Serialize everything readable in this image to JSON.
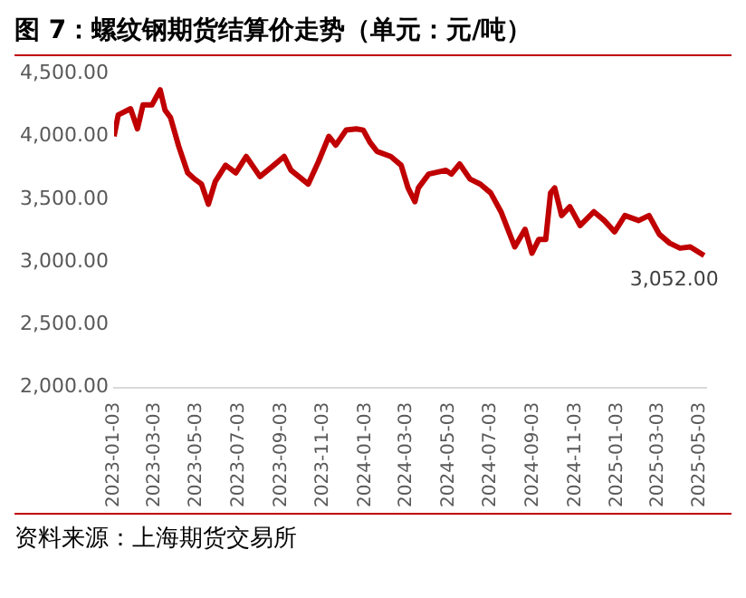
{
  "chart_data": {
    "type": "line",
    "title": "图 7：螺纹钢期货结算价走势（单元：元/吨）",
    "x": [
      "2023-01-03",
      "2023-01-09",
      "2023-01-27",
      "2023-02-06",
      "2023-02-14",
      "2023-02-27",
      "2023-03-11",
      "2023-03-18",
      "2023-03-26",
      "2023-04-07",
      "2023-04-20",
      "2023-04-30",
      "2023-05-10",
      "2023-05-20",
      "2023-05-30",
      "2023-06-14",
      "2023-06-29",
      "2023-07-14",
      "2023-08-03",
      "2023-08-23",
      "2023-09-07",
      "2023-09-17",
      "2023-10-12",
      "2023-10-27",
      "2023-11-11",
      "2023-11-21",
      "2023-12-06",
      "2023-12-21",
      "2023-12-31",
      "2024-01-10",
      "2024-01-20",
      "2024-02-09",
      "2024-02-24",
      "2024-03-05",
      "2024-03-15",
      "2024-03-20",
      "2024-04-04",
      "2024-04-29",
      "2024-05-07",
      "2024-05-19",
      "2024-06-03",
      "2024-06-18",
      "2024-07-03",
      "2024-07-18",
      "2024-08-07",
      "2024-08-22",
      "2024-09-01",
      "2024-09-11",
      "2024-09-21",
      "2024-09-28",
      "2024-10-04",
      "2024-10-14",
      "2024-10-26",
      "2024-11-10",
      "2024-11-30",
      "2024-12-15",
      "2024-12-30",
      "2025-01-14",
      "2025-02-03",
      "2025-02-18",
      "2025-03-05",
      "2025-03-20",
      "2025-04-04",
      "2025-04-19",
      "2025-05-09"
    ],
    "series": [
      {
        "color": "#c00000",
        "values": [
          4000,
          4170,
          4220,
          4060,
          4250,
          4250,
          4370,
          4210,
          4150,
          3920,
          3710,
          3660,
          3620,
          3460,
          3640,
          3770,
          3710,
          3840,
          3680,
          3770,
          3840,
          3730,
          3620,
          3800,
          4000,
          3930,
          4050,
          4060,
          4050,
          3950,
          3880,
          3840,
          3770,
          3590,
          3480,
          3590,
          3700,
          3730,
          3700,
          3780,
          3660,
          3620,
          3550,
          3400,
          3120,
          3260,
          3070,
          3180,
          3180,
          3550,
          3590,
          3370,
          3440,
          3290,
          3400,
          3330,
          3240,
          3370,
          3330,
          3370,
          3220,
          3150,
          3110,
          3120,
          3052
        ]
      }
    ],
    "xlim": [
      "2023-01-03",
      "2025-05-12"
    ],
    "xticks": [
      "2023-01-03",
      "2023-03-03",
      "2023-05-03",
      "2023-07-03",
      "2023-09-03",
      "2023-11-03",
      "2024-01-03",
      "2024-03-03",
      "2024-05-03",
      "2024-07-03",
      "2024-09-03",
      "2024-11-03",
      "2025-01-03",
      "2025-03-03",
      "2025-05-03"
    ],
    "ylim": [
      2000,
      4500
    ],
    "yticks": [
      {
        "value": 2000,
        "label": "2,000.00"
      },
      {
        "value": 2500,
        "label": "2,500.00"
      },
      {
        "value": 3000,
        "label": "3,000.00"
      },
      {
        "value": 3500,
        "label": "3,500.00"
      },
      {
        "value": 4000,
        "label": "4,000.00"
      },
      {
        "value": 4500,
        "label": "4,500.00"
      }
    ],
    "annotations": [
      {
        "text": "3,052.00",
        "x": "2025-05-09",
        "y": 3052
      },
      "资料来源：上海期货交易所"
    ],
    "grid": false,
    "legend": false,
    "marker": "none",
    "line_style": "solid"
  }
}
